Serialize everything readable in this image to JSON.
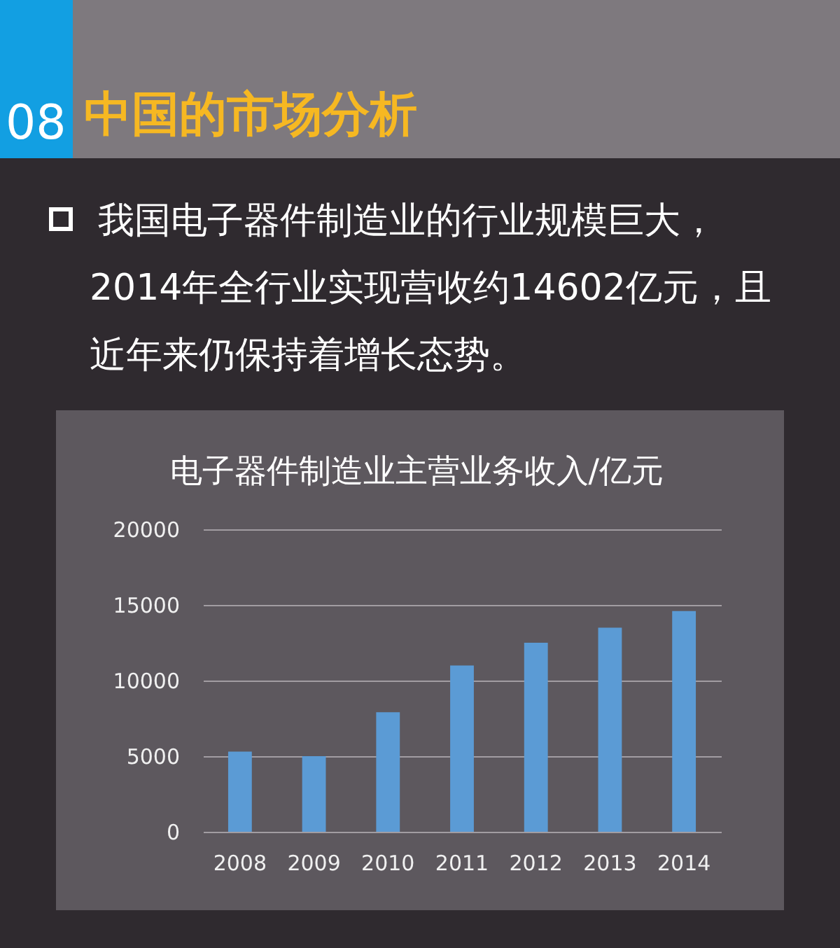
{
  "chart_data": {
    "type": "bar",
    "title": "电子器件制造业主营业务收入/亿元",
    "categories": [
      "2008",
      "2009",
      "2010",
      "2011",
      "2012",
      "2013",
      "2014"
    ],
    "values": [
      5300,
      5000,
      7900,
      11000,
      12500,
      13500,
      14600
    ],
    "color": "#5b9bd5",
    "ylim": [
      0,
      20000
    ],
    "yticks": [
      0,
      5000,
      10000,
      15000,
      20000
    ],
    "grid": "y",
    "annotations": [
      "08",
      "中国的市场分析",
      "我国电子器件制造业的行业规模巨大，2014年全行业实现营收约14602亿元，且近年来仍保持着增长态势。"
    ]
  }
}
